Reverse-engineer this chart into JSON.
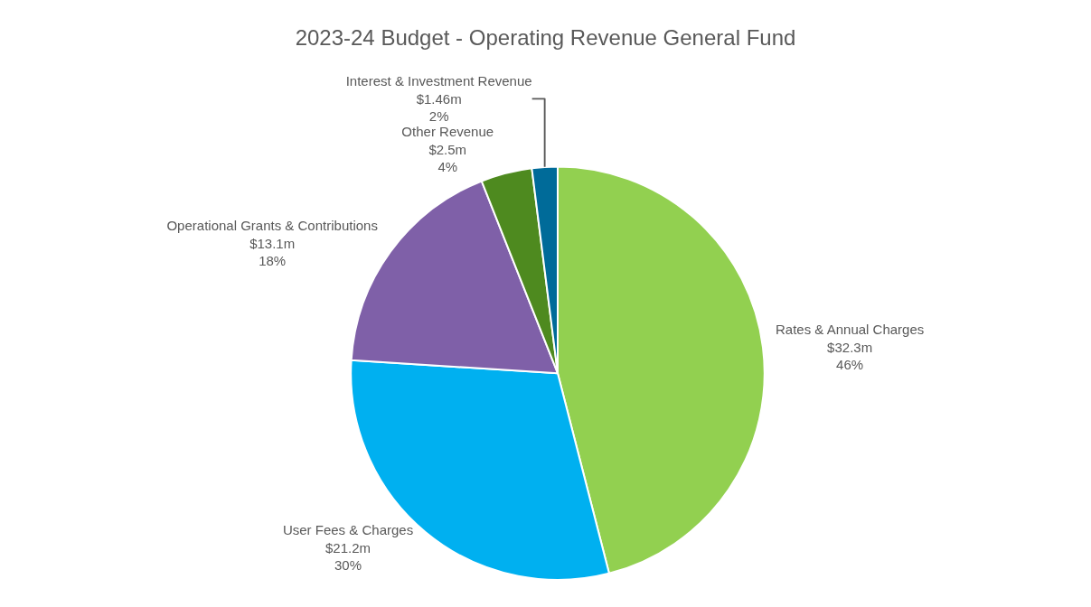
{
  "chart_data": {
    "type": "pie",
    "title": "2023-24 Budget - Operating Revenue General Fund",
    "categories": [
      "Rates & Annual Charges",
      "User Fees & Charges",
      "Operational Grants & Contributions",
      "Other Revenue",
      "Interest & Investment Revenue"
    ],
    "values": [
      46,
      30,
      18,
      4,
      2
    ],
    "colors": [
      "#92d050",
      "#00b0f0",
      "#7f60a8",
      "#4e8a1f",
      "#006b99"
    ],
    "value_labels": [
      "$32.3m\n46%",
      "$21.2m\n30%",
      "$13.1m\n18%",
      "$2.5m\n4%",
      "$1.46m\n2%"
    ],
    "legend": false
  }
}
